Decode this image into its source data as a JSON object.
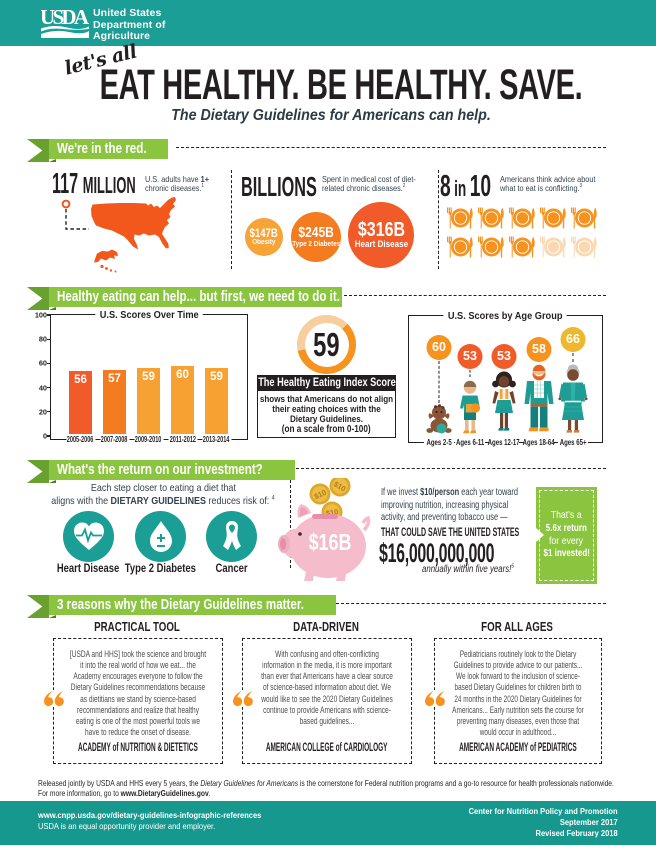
{
  "header": {
    "logo": "USDA",
    "dept_lines": [
      "United States",
      "Department of",
      "Agriculture"
    ]
  },
  "hero": {
    "script": "let's all",
    "title": "EAT HEALTHY. BE HEALTHY. SAVE.",
    "tagline": "The Dietary Guidelines for Americans can help."
  },
  "sections": {
    "red": {
      "banner": "We're in the red.",
      "stat1": {
        "number": "117",
        "unit": "MILLION",
        "cap_pre": "U.S. adults have ",
        "cap_bold": "1+",
        "cap_post": " chronic diseases.",
        "footnote": "1"
      },
      "stat2": {
        "number": "BILLIONS",
        "cap": "Spent in medical cost of diet-related chronic diseases.",
        "footnote": "2",
        "circles": [
          {
            "value": "$147B",
            "label": "Obesity",
            "color": "#f6a338"
          },
          {
            "value": "$245B",
            "label": "Type 2 Diabetes",
            "color": "#f47b20"
          },
          {
            "value": "$316B",
            "label": "Heart Disease",
            "color": "#f15a29"
          }
        ]
      },
      "stat3": {
        "number_a": "8",
        "number_mid": "in",
        "number_b": "10",
        "cap": "Americans think advice about what to eat is conflicting.",
        "footnote": "3",
        "plates": {
          "total": 10,
          "filled": 8
        }
      }
    },
    "help": {
      "banner": "Healthy eating can help... but first, we need to do it.",
      "gauge": {
        "value": "59"
      },
      "hei_heading": "The Healthy Eating Index Score",
      "hei_body": "shows that Americans do not align their eating choices with the Dietary Guidelines.",
      "hei_scale": "(on a scale from 0-100)"
    },
    "roi": {
      "banner": "What's the return on our investment?",
      "risk_l1": "Each step closer to eating a diet that",
      "risk_l2_pre": "aligns with the ",
      "risk_bold": "DIETARY GUIDELINES",
      "risk_l2_post": " reduces risk of: ",
      "risk_footnote": "4",
      "risks": [
        "Heart Disease",
        "Type 2 Diabetes",
        "Cancer"
      ],
      "piggy_amount": "$16B",
      "coin_label": "$10",
      "invest_pre": "If we invest ",
      "invest_bold": "$10/person",
      "invest_post": " each year toward improving nutrition, increasing physical activity, and preventing tobacco use —",
      "save_pre": "THAT COULD ",
      "save_bold": "SAVE",
      "save_post": " THE UNITED STATES",
      "big_money": "$16,000,000,000",
      "annually": "annually within five years!",
      "annually_footnote": "5",
      "callout": {
        "l1": "That's a",
        "l2": "5.6x return",
        "l3": "for every",
        "l4": "$1 invested!"
      }
    },
    "reasons": {
      "banner": "3 reasons why the Dietary Guidelines matter.",
      "columns": [
        {
          "heading": "PRACTICAL TOOL",
          "quote": "[USDA and HHS] took the science and brought it into the real world of how we eat... the Academy encourages everyone to follow the Dietary Guidelines recommendations because as dietitians we stand by science-based recommendations and realize that healthy eating is one of the most powerful tools we have to reduce the onset of disease.",
          "attribution": "ACADEMY of NUTRITION & DIETETICS"
        },
        {
          "heading": "DATA-DRIVEN",
          "quote": "With confusing and often-conflicting information in the media, it is more important than ever that Americans have a clear source of science-based information about diet. We would like to see the 2020 Dietary Guidelines continue to provide Americans with science-based guidelines...",
          "attribution": "AMERICAN COLLEGE of CARDIOLOGY"
        },
        {
          "heading": "FOR ALL AGES",
          "quote": "Pediatricians routinely look to the Dietary Guidelines to provide advice to our patients... We look forward to the inclusion of science-based Dietary Guidelines for children birth to 24 months in the 2020 Dietary Guidelines for Americans... Early nutrition sets the course for preventing many diseases, even those that would occur in adulthood...",
          "attribution": "AMERICAN ACADEMY of PEDIATRICS"
        }
      ]
    }
  },
  "released_pre": "Released jointly by USDA and HHS every 5 years, the ",
  "released_italic": "Dietary Guidelines for Americans",
  "released_post": " is the cornerstone for Federal nutrition programs and a go-to resource for health professionals nationwide.",
  "released_line2_pre": "For more information, go to ",
  "released_line2_bold": "www.DietaryGuidelines.gov",
  "released_line2_post": ".",
  "footer": {
    "left1": "www.cnpp.usda.gov/dietary-guidelines-infographic-references",
    "left2": "USDA is an equal opportunity provider and employer.",
    "right1": "Center for Nutrition Policy and Promotion",
    "right2": "September 2017",
    "right3": "Revised February 2018"
  },
  "chart_data": [
    {
      "type": "bar",
      "title": "U.S. Scores Over Time",
      "categories": [
        "2005-2006",
        "2007-2008",
        "2009-2010",
        "2011-2012",
        "2013-2014"
      ],
      "values": [
        56,
        57,
        59,
        60,
        59
      ],
      "bar_colors": [
        "#f15a29",
        "#f47b20",
        "#f8a133",
        "#f8a133",
        "#f8a133"
      ],
      "ylim": [
        0,
        100
      ],
      "yticks": [
        0,
        20,
        40,
        60,
        80,
        100
      ],
      "xlabel": "",
      "ylabel": ""
    },
    {
      "type": "gauge",
      "title": "The Healthy Eating Index Score",
      "value": 59,
      "range": [
        0,
        100
      ]
    },
    {
      "type": "pictorial-bar",
      "title": "U.S. Scores by Age Group",
      "categories": [
        "Ages 2-5",
        "Ages 6-11",
        "Ages 12-17",
        "Ages 18-64",
        "Ages 65+"
      ],
      "values": [
        60,
        53,
        53,
        58,
        66
      ],
      "circle_colors": [
        "#f6921e",
        "#f15a29",
        "#f15a29",
        "#f6921e",
        "#eeb72c"
      ]
    }
  ],
  "colors": {
    "teal": "#1a9e95",
    "banner_green": "#8bc53f",
    "ribbon_dark_green": "#68a12f",
    "orange_map": "#f2571c",
    "orange_plate": "#f6921e",
    "ink": "#231f20",
    "pig_pink": "#f5bccb"
  }
}
